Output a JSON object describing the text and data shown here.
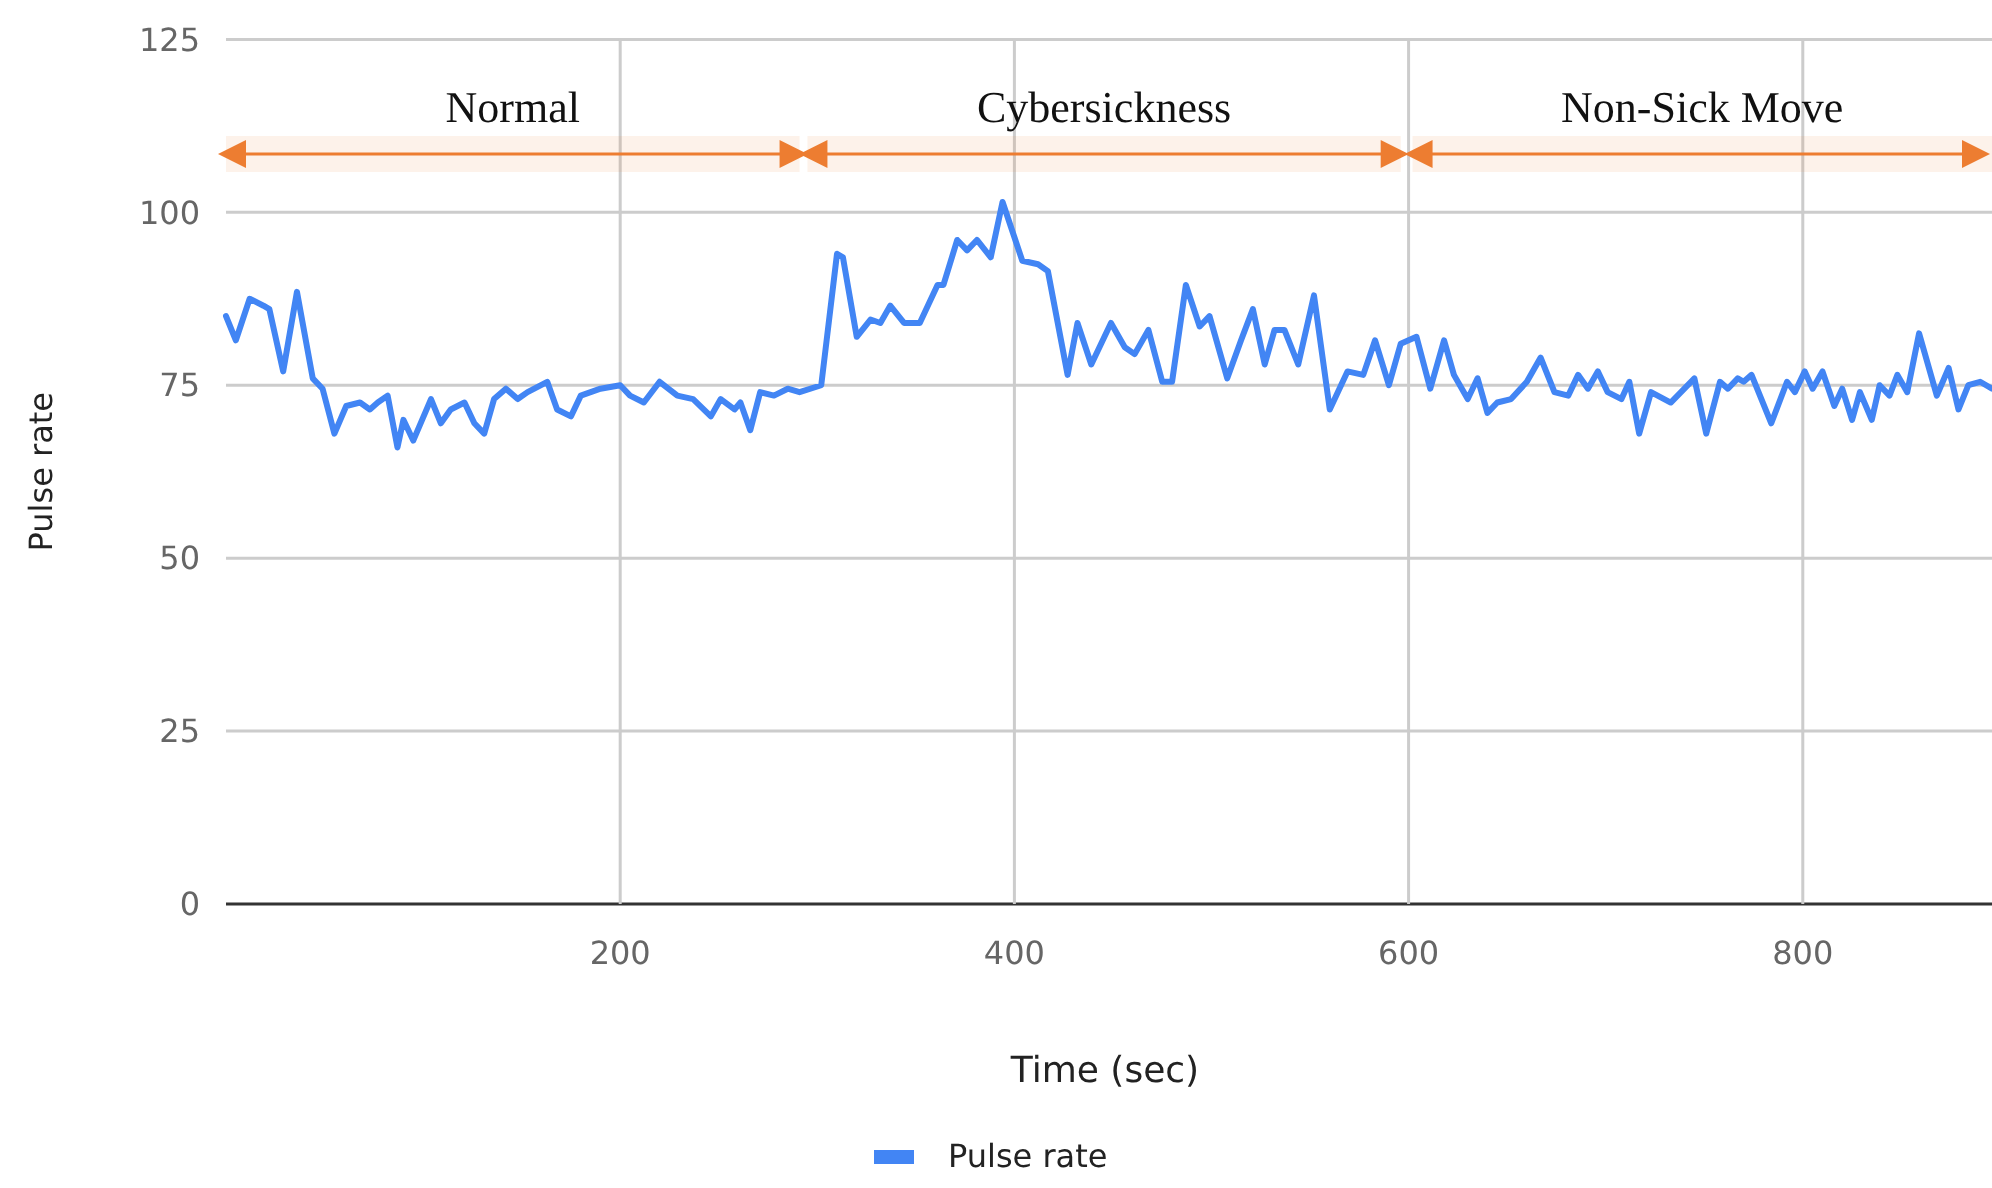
{
  "chart_data": {
    "type": "line",
    "xlabel": "Time (sec)",
    "ylabel": "Pulse rate",
    "xlim": [
      0,
      896
    ],
    "ylim": [
      0,
      125
    ],
    "xticks": [
      200,
      400,
      600,
      800
    ],
    "yticks": [
      0,
      25,
      50,
      75,
      100,
      125
    ],
    "grid": true,
    "legend": "bottom",
    "bands": [
      {
        "axis": "x",
        "from": 0,
        "to": 291,
        "label": "Normal",
        "color": "#ed7d31"
      },
      {
        "axis": "x",
        "from": 295,
        "to": 596,
        "label": "Cybersickness",
        "color": "#ed7d31"
      },
      {
        "axis": "x",
        "from": 602,
        "to": 896,
        "label": "Non-Sick Move",
        "color": "#ed7d31"
      }
    ],
    "series": [
      {
        "name": "Pulse rate",
        "color": "#4285f4",
        "x": [
          0,
          5,
          12,
          19,
          22,
          29,
          36,
          44,
          49,
          55,
          61,
          68,
          73,
          77,
          82,
          87,
          90,
          95,
          104,
          109,
          114,
          121,
          126,
          131,
          136,
          142,
          148,
          153,
          163,
          168,
          175,
          180,
          190,
          200,
          205,
          212,
          220,
          229,
          237,
          246,
          251,
          258,
          261,
          266,
          271,
          278,
          285,
          291,
          302,
          310,
          313,
          320,
          327,
          332,
          337,
          344,
          352,
          361,
          364,
          371,
          376,
          381,
          388,
          394,
          404,
          412,
          417,
          427,
          432,
          439,
          449,
          456,
          461,
          468,
          475,
          480,
          487,
          494,
          499,
          508,
          515,
          521,
          527,
          532,
          537,
          544,
          552,
          560,
          569,
          577,
          583,
          590,
          596,
          604,
          611,
          618,
          623,
          630,
          635,
          640,
          645,
          652,
          660,
          667,
          674,
          681,
          686,
          691,
          696,
          701,
          708,
          712,
          717,
          723,
          733,
          745,
          751,
          758,
          762,
          767,
          770,
          774,
          784,
          792,
          796,
          801,
          805,
          810,
          816,
          820,
          825,
          829,
          835,
          839,
          844,
          848,
          853,
          859,
          868,
          874,
          879,
          884,
          890,
          896
        ],
        "values": [
          85,
          81.5,
          87.5,
          86.5,
          86,
          77,
          88.5,
          76,
          74.5,
          68,
          72,
          72.5,
          71.5,
          72.5,
          73.5,
          66,
          70,
          67,
          73,
          69.5,
          71.5,
          72.5,
          69.5,
          68,
          73,
          74.5,
          73,
          74,
          75.5,
          71.5,
          70.5,
          73.5,
          74.5,
          75,
          73.5,
          72.5,
          75.5,
          73.5,
          73,
          70.5,
          73,
          71.5,
          72.5,
          68.5,
          74,
          73.5,
          74.5,
          74,
          75,
          94,
          93.5,
          82,
          84.5,
          84,
          86.5,
          84,
          84,
          89.5,
          89.5,
          96,
          94.5,
          96,
          93.5,
          101.5,
          93,
          92.5,
          91.5,
          76.5,
          84,
          78,
          84,
          80.5,
          79.5,
          83,
          75.5,
          75.5,
          89.5,
          83.5,
          85,
          76,
          81.5,
          86,
          78,
          83,
          83,
          78,
          88,
          71.5,
          77,
          76.5,
          81.5,
          75,
          81,
          82,
          74.5,
          81.5,
          76.5,
          73,
          76,
          71,
          72.5,
          73,
          75.5,
          79,
          74,
          73.5,
          76.5,
          74.5,
          77,
          74,
          73,
          75.5,
          68,
          74,
          72.5,
          76,
          68,
          75.5,
          74.5,
          76,
          75.5,
          76.5,
          69.5,
          75.5,
          74,
          77,
          74.5,
          77,
          72,
          74.5,
          70,
          74,
          70,
          75,
          73.5,
          76.5,
          74,
          82.5,
          73.5,
          77.5,
          71.5,
          75,
          75.5,
          74.5
        ]
      }
    ]
  }
}
